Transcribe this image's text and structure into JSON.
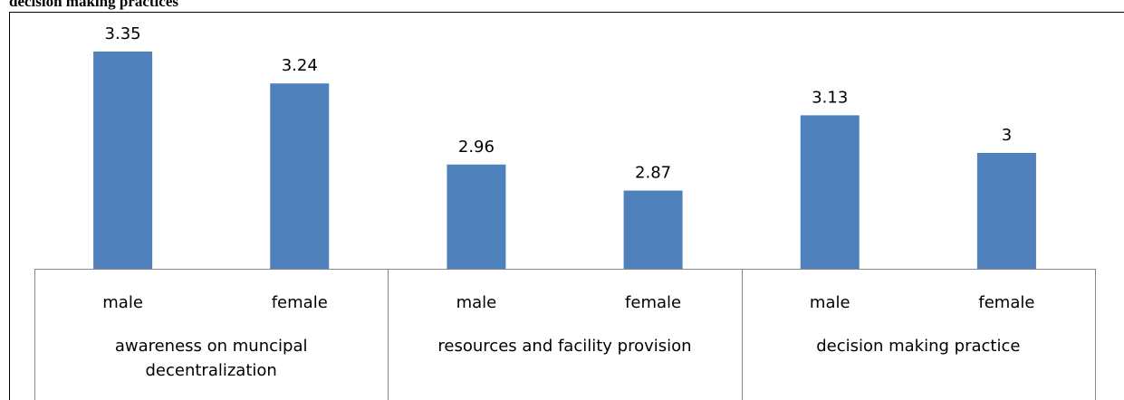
{
  "chart_data": {
    "type": "bar",
    "title": "decision making practices",
    "categories": [
      "male",
      "female",
      "male",
      "female",
      "male",
      "female"
    ],
    "groups": [
      "awareness on muncipal decentralization",
      "resources and facility provision",
      "decision making practice"
    ],
    "values": [
      3.35,
      3.24,
      2.96,
      2.87,
      3.13,
      3
    ],
    "color": "#4f81bd",
    "ylim": [
      2.6,
      3.4
    ]
  }
}
